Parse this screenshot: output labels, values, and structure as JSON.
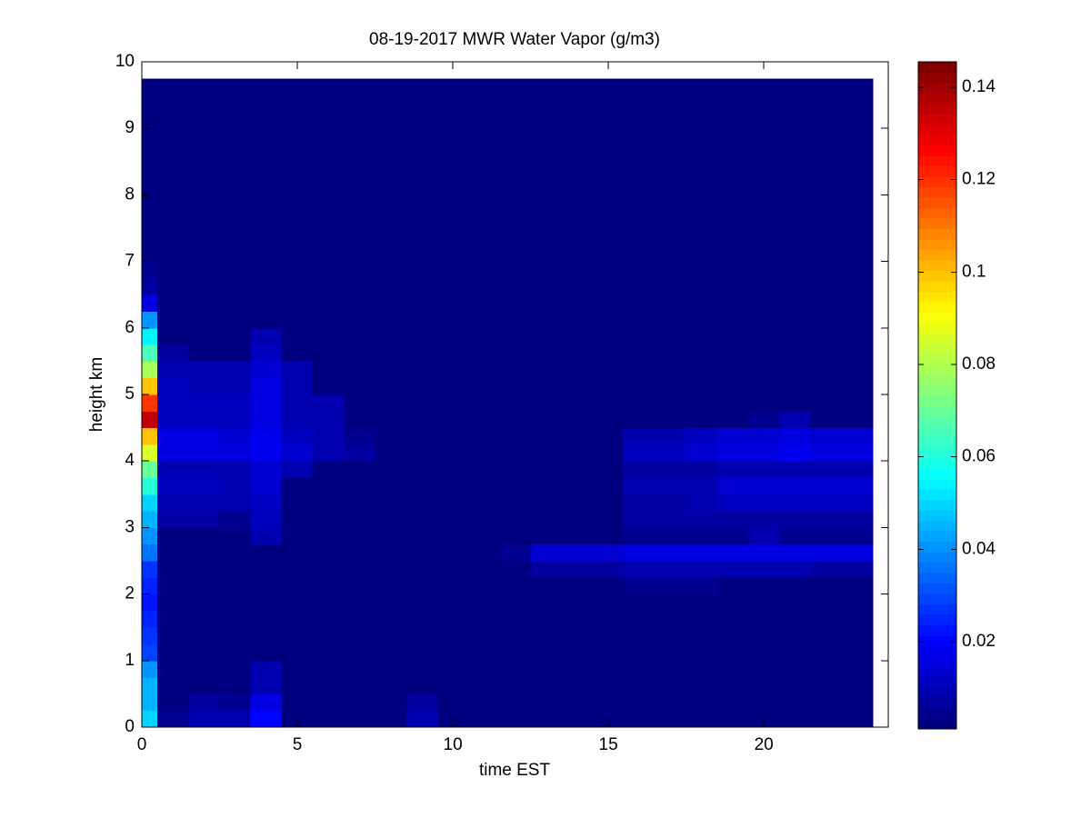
{
  "chart_data": {
    "type": "heatmap",
    "title": "08-19-2017 MWR Water Vapor (g/m3)",
    "x_label": "time EST",
    "y_label": "height km",
    "xlim": [
      0,
      24
    ],
    "ylim": [
      0,
      10
    ],
    "xticks": [
      0,
      5,
      10,
      15,
      20
    ],
    "yticks": [
      0,
      1,
      2,
      3,
      4,
      5,
      6,
      7,
      8,
      9,
      10
    ],
    "clim": [
      0.0011,
      0.1455
    ],
    "cticks": [
      0.02,
      0.04,
      0.06,
      0.08,
      0.1,
      0.12,
      0.14
    ],
    "colormap": "jet",
    "x_edges": [
      0,
      0.5,
      1.5,
      2.5,
      3.5,
      4.5,
      5.5,
      6.5,
      7.5,
      8.5,
      9.5,
      10.5,
      11.5,
      12.5,
      13.5,
      14.5,
      15.5,
      16.5,
      17.5,
      18.5,
      19.5,
      20.5,
      21.5,
      22.5,
      23.5
    ],
    "y_edges": [
      0,
      0.25,
      0.5,
      0.75,
      1,
      1.25,
      1.5,
      1.75,
      2,
      2.25,
      2.5,
      2.75,
      3,
      3.25,
      3.5,
      3.75,
      4,
      4.25,
      4.5,
      4.75,
      5,
      5.25,
      5.5,
      5.75,
      6,
      6.25,
      6.5,
      6.75,
      7,
      7.25,
      7.5,
      7.75,
      8,
      8.25,
      8.5,
      8.75,
      9,
      9.25,
      9.5,
      9.75
    ],
    "z": [
      [
        0.05,
        0.004,
        0.008,
        0.008,
        0.02,
        0.003,
        0.003,
        0.003,
        0.003,
        0.008,
        0.003,
        0.003,
        0.003,
        0.003,
        0.003,
        0.003,
        0.003,
        0.003,
        0.003,
        0.003,
        0.003,
        0.003,
        0.003,
        0.003
      ],
      [
        0.045,
        0.003,
        0.006,
        0.004,
        0.016,
        0.003,
        0.003,
        0.003,
        0.003,
        0.007,
        0.003,
        0.003,
        0.003,
        0.003,
        0.003,
        0.003,
        0.003,
        0.003,
        0.003,
        0.003,
        0.003,
        0.003,
        0.003,
        0.003
      ],
      [
        0.045,
        0.003,
        0.003,
        0.003,
        0.01,
        0.003,
        0.003,
        0.003,
        0.003,
        0.003,
        0.003,
        0.003,
        0.003,
        0.003,
        0.003,
        0.003,
        0.003,
        0.003,
        0.003,
        0.003,
        0.003,
        0.003,
        0.003,
        0.003
      ],
      [
        0.04,
        0.003,
        0.003,
        0.003,
        0.009,
        0.003,
        0.003,
        0.003,
        0.003,
        0.003,
        0.003,
        0.003,
        0.003,
        0.003,
        0.003,
        0.003,
        0.003,
        0.003,
        0.003,
        0.003,
        0.003,
        0.003,
        0.003,
        0.003
      ],
      [
        0.03,
        0.003,
        0.003,
        0.003,
        0.003,
        0.003,
        0.003,
        0.003,
        0.003,
        0.003,
        0.003,
        0.003,
        0.003,
        0.003,
        0.003,
        0.003,
        0.003,
        0.003,
        0.003,
        0.003,
        0.003,
        0.003,
        0.003,
        0.003
      ],
      [
        0.028,
        0.003,
        0.003,
        0.003,
        0.003,
        0.003,
        0.003,
        0.003,
        0.003,
        0.003,
        0.003,
        0.003,
        0.003,
        0.003,
        0.003,
        0.003,
        0.003,
        0.003,
        0.003,
        0.003,
        0.003,
        0.003,
        0.003,
        0.003
      ],
      [
        0.025,
        0.003,
        0.003,
        0.003,
        0.003,
        0.003,
        0.003,
        0.003,
        0.003,
        0.003,
        0.003,
        0.003,
        0.003,
        0.003,
        0.003,
        0.003,
        0.003,
        0.003,
        0.003,
        0.003,
        0.003,
        0.003,
        0.003,
        0.003
      ],
      [
        0.022,
        0.003,
        0.003,
        0.003,
        0.003,
        0.003,
        0.003,
        0.003,
        0.003,
        0.003,
        0.003,
        0.003,
        0.003,
        0.003,
        0.003,
        0.003,
        0.003,
        0.003,
        0.003,
        0.003,
        0.003,
        0.003,
        0.003,
        0.003
      ],
      [
        0.025,
        0.003,
        0.003,
        0.003,
        0.003,
        0.003,
        0.003,
        0.003,
        0.003,
        0.003,
        0.003,
        0.003,
        0.003,
        0.003,
        0.003,
        0.003,
        0.005,
        0.005,
        0.005,
        0.003,
        0.003,
        0.003,
        0.003,
        0.003
      ],
      [
        0.028,
        0.003,
        0.003,
        0.003,
        0.003,
        0.003,
        0.003,
        0.003,
        0.003,
        0.003,
        0.003,
        0.003,
        0.003,
        0.006,
        0.007,
        0.007,
        0.008,
        0.008,
        0.008,
        0.008,
        0.008,
        0.008,
        0.007,
        0.007
      ],
      [
        0.035,
        0.003,
        0.003,
        0.003,
        0.003,
        0.003,
        0.003,
        0.003,
        0.003,
        0.003,
        0.003,
        0.003,
        0.005,
        0.013,
        0.014,
        0.014,
        0.015,
        0.015,
        0.015,
        0.015,
        0.015,
        0.015,
        0.015,
        0.015
      ],
      [
        0.04,
        0.003,
        0.003,
        0.003,
        0.01,
        0.003,
        0.003,
        0.003,
        0.003,
        0.003,
        0.003,
        0.003,
        0.003,
        0.003,
        0.003,
        0.003,
        0.005,
        0.005,
        0.005,
        0.005,
        0.008,
        0.005,
        0.005,
        0.005
      ],
      [
        0.045,
        0.006,
        0.006,
        0.005,
        0.011,
        0.003,
        0.003,
        0.003,
        0.003,
        0.003,
        0.003,
        0.003,
        0.003,
        0.003,
        0.003,
        0.003,
        0.006,
        0.006,
        0.006,
        0.006,
        0.006,
        0.006,
        0.006,
        0.006
      ],
      [
        0.05,
        0.01,
        0.01,
        0.008,
        0.012,
        0.003,
        0.003,
        0.003,
        0.003,
        0.003,
        0.003,
        0.003,
        0.003,
        0.003,
        0.003,
        0.003,
        0.007,
        0.007,
        0.008,
        0.012,
        0.012,
        0.012,
        0.012,
        0.012
      ],
      [
        0.06,
        0.012,
        0.012,
        0.008,
        0.013,
        0.003,
        0.003,
        0.003,
        0.003,
        0.003,
        0.003,
        0.003,
        0.003,
        0.003,
        0.003,
        0.003,
        0.008,
        0.009,
        0.009,
        0.013,
        0.013,
        0.013,
        0.013,
        0.013
      ],
      [
        0.07,
        0.01,
        0.01,
        0.009,
        0.014,
        0.008,
        0.003,
        0.003,
        0.003,
        0.003,
        0.003,
        0.003,
        0.003,
        0.003,
        0.003,
        0.003,
        0.006,
        0.006,
        0.006,
        0.008,
        0.008,
        0.008,
        0.008,
        0.008
      ],
      [
        0.085,
        0.016,
        0.016,
        0.015,
        0.018,
        0.014,
        0.01,
        0.006,
        0.003,
        0.003,
        0.003,
        0.003,
        0.003,
        0.003,
        0.003,
        0.003,
        0.012,
        0.012,
        0.014,
        0.016,
        0.016,
        0.018,
        0.016,
        0.016
      ],
      [
        0.1,
        0.015,
        0.015,
        0.014,
        0.017,
        0.012,
        0.01,
        0.005,
        0.003,
        0.003,
        0.003,
        0.003,
        0.003,
        0.003,
        0.003,
        0.003,
        0.01,
        0.01,
        0.012,
        0.014,
        0.014,
        0.016,
        0.014,
        0.014
      ],
      [
        0.135,
        0.012,
        0.012,
        0.012,
        0.016,
        0.01,
        0.008,
        0.003,
        0.003,
        0.003,
        0.003,
        0.003,
        0.003,
        0.003,
        0.003,
        0.003,
        0.003,
        0.003,
        0.003,
        0.003,
        0.005,
        0.01,
        0.003,
        0.003
      ],
      [
        0.12,
        0.012,
        0.012,
        0.012,
        0.016,
        0.01,
        0.008,
        0.003,
        0.003,
        0.003,
        0.003,
        0.003,
        0.003,
        0.003,
        0.003,
        0.003,
        0.003,
        0.003,
        0.003,
        0.003,
        0.003,
        0.003,
        0.003,
        0.003
      ],
      [
        0.1,
        0.012,
        0.01,
        0.01,
        0.015,
        0.01,
        0.003,
        0.003,
        0.003,
        0.003,
        0.003,
        0.003,
        0.003,
        0.003,
        0.003,
        0.003,
        0.003,
        0.003,
        0.003,
        0.003,
        0.003,
        0.003,
        0.003,
        0.003
      ],
      [
        0.08,
        0.01,
        0.008,
        0.008,
        0.014,
        0.008,
        0.003,
        0.003,
        0.003,
        0.003,
        0.003,
        0.003,
        0.003,
        0.003,
        0.003,
        0.003,
        0.003,
        0.003,
        0.003,
        0.003,
        0.003,
        0.003,
        0.003,
        0.003
      ],
      [
        0.065,
        0.006,
        0.003,
        0.003,
        0.012,
        0.003,
        0.003,
        0.003,
        0.003,
        0.003,
        0.003,
        0.003,
        0.003,
        0.003,
        0.003,
        0.003,
        0.003,
        0.003,
        0.003,
        0.003,
        0.003,
        0.003,
        0.003,
        0.003
      ],
      [
        0.055,
        0.003,
        0.003,
        0.003,
        0.008,
        0.003,
        0.003,
        0.003,
        0.003,
        0.003,
        0.003,
        0.003,
        0.003,
        0.003,
        0.003,
        0.003,
        0.003,
        0.003,
        0.003,
        0.003,
        0.003,
        0.003,
        0.003,
        0.003
      ],
      [
        0.04,
        0.003,
        0.003,
        0.003,
        0.003,
        0.003,
        0.003,
        0.003,
        0.003,
        0.003,
        0.003,
        0.003,
        0.003,
        0.003,
        0.003,
        0.003,
        0.003,
        0.003,
        0.003,
        0.003,
        0.003,
        0.003,
        0.003,
        0.003
      ],
      [
        0.015,
        0.003,
        0.003,
        0.003,
        0.003,
        0.003,
        0.003,
        0.003,
        0.003,
        0.003,
        0.003,
        0.003,
        0.003,
        0.003,
        0.003,
        0.003,
        0.003,
        0.003,
        0.003,
        0.003,
        0.003,
        0.003,
        0.003,
        0.003
      ],
      [
        0.006,
        0.003,
        0.003,
        0.003,
        0.003,
        0.003,
        0.003,
        0.003,
        0.003,
        0.003,
        0.003,
        0.003,
        0.003,
        0.003,
        0.003,
        0.003,
        0.003,
        0.003,
        0.003,
        0.003,
        0.003,
        0.003,
        0.003,
        0.003
      ],
      [
        0.004,
        0.003,
        0.003,
        0.003,
        0.003,
        0.003,
        0.003,
        0.003,
        0.003,
        0.003,
        0.003,
        0.003,
        0.003,
        0.003,
        0.003,
        0.003,
        0.003,
        0.003,
        0.003,
        0.003,
        0.003,
        0.003,
        0.003,
        0.003
      ],
      [
        0.003,
        0.003,
        0.003,
        0.003,
        0.003,
        0.003,
        0.003,
        0.003,
        0.003,
        0.003,
        0.003,
        0.003,
        0.003,
        0.003,
        0.003,
        0.003,
        0.003,
        0.003,
        0.003,
        0.003,
        0.003,
        0.003,
        0.003,
        0.003
      ],
      [
        0.003,
        0.003,
        0.003,
        0.003,
        0.003,
        0.003,
        0.003,
        0.003,
        0.003,
        0.003,
        0.003,
        0.003,
        0.003,
        0.003,
        0.003,
        0.003,
        0.003,
        0.003,
        0.003,
        0.003,
        0.003,
        0.003,
        0.003,
        0.003
      ],
      [
        0.003,
        0.003,
        0.003,
        0.003,
        0.003,
        0.003,
        0.003,
        0.003,
        0.003,
        0.003,
        0.003,
        0.003,
        0.003,
        0.003,
        0.003,
        0.003,
        0.003,
        0.003,
        0.003,
        0.003,
        0.003,
        0.003,
        0.003,
        0.003
      ],
      [
        0.003,
        0.003,
        0.003,
        0.003,
        0.003,
        0.003,
        0.003,
        0.003,
        0.003,
        0.003,
        0.003,
        0.003,
        0.003,
        0.003,
        0.003,
        0.003,
        0.003,
        0.003,
        0.003,
        0.003,
        0.003,
        0.003,
        0.003,
        0.003
      ],
      [
        0.003,
        0.003,
        0.003,
        0.003,
        0.003,
        0.003,
        0.003,
        0.003,
        0.003,
        0.003,
        0.003,
        0.003,
        0.003,
        0.003,
        0.003,
        0.003,
        0.003,
        0.003,
        0.003,
        0.003,
        0.003,
        0.003,
        0.003,
        0.003
      ],
      [
        0.003,
        0.003,
        0.003,
        0.003,
        0.003,
        0.003,
        0.003,
        0.003,
        0.003,
        0.003,
        0.003,
        0.003,
        0.003,
        0.003,
        0.003,
        0.003,
        0.003,
        0.003,
        0.003,
        0.003,
        0.003,
        0.003,
        0.003,
        0.003
      ],
      [
        0.003,
        0.003,
        0.003,
        0.003,
        0.003,
        0.003,
        0.003,
        0.003,
        0.003,
        0.003,
        0.003,
        0.003,
        0.003,
        0.003,
        0.003,
        0.003,
        0.003,
        0.003,
        0.003,
        0.003,
        0.003,
        0.003,
        0.003,
        0.003
      ],
      [
        0.003,
        0.003,
        0.003,
        0.003,
        0.003,
        0.003,
        0.003,
        0.003,
        0.003,
        0.003,
        0.003,
        0.003,
        0.003,
        0.003,
        0.003,
        0.003,
        0.003,
        0.003,
        0.003,
        0.003,
        0.003,
        0.003,
        0.003,
        0.003
      ],
      [
        0.003,
        0.003,
        0.003,
        0.003,
        0.003,
        0.003,
        0.003,
        0.003,
        0.003,
        0.003,
        0.003,
        0.003,
        0.003,
        0.003,
        0.003,
        0.003,
        0.003,
        0.003,
        0.003,
        0.003,
        0.003,
        0.003,
        0.003,
        0.003
      ],
      [
        0.003,
        0.003,
        0.003,
        0.003,
        0.003,
        0.003,
        0.003,
        0.003,
        0.003,
        0.003,
        0.003,
        0.003,
        0.003,
        0.003,
        0.003,
        0.003,
        0.003,
        0.003,
        0.003,
        0.003,
        0.003,
        0.003,
        0.003,
        0.003
      ],
      [
        0.003,
        0.003,
        0.003,
        0.003,
        0.003,
        0.003,
        0.003,
        0.003,
        0.003,
        0.003,
        0.003,
        0.003,
        0.003,
        0.003,
        0.003,
        0.003,
        0.003,
        0.003,
        0.003,
        0.003,
        0.003,
        0.003,
        0.003,
        0.003
      ]
    ]
  }
}
